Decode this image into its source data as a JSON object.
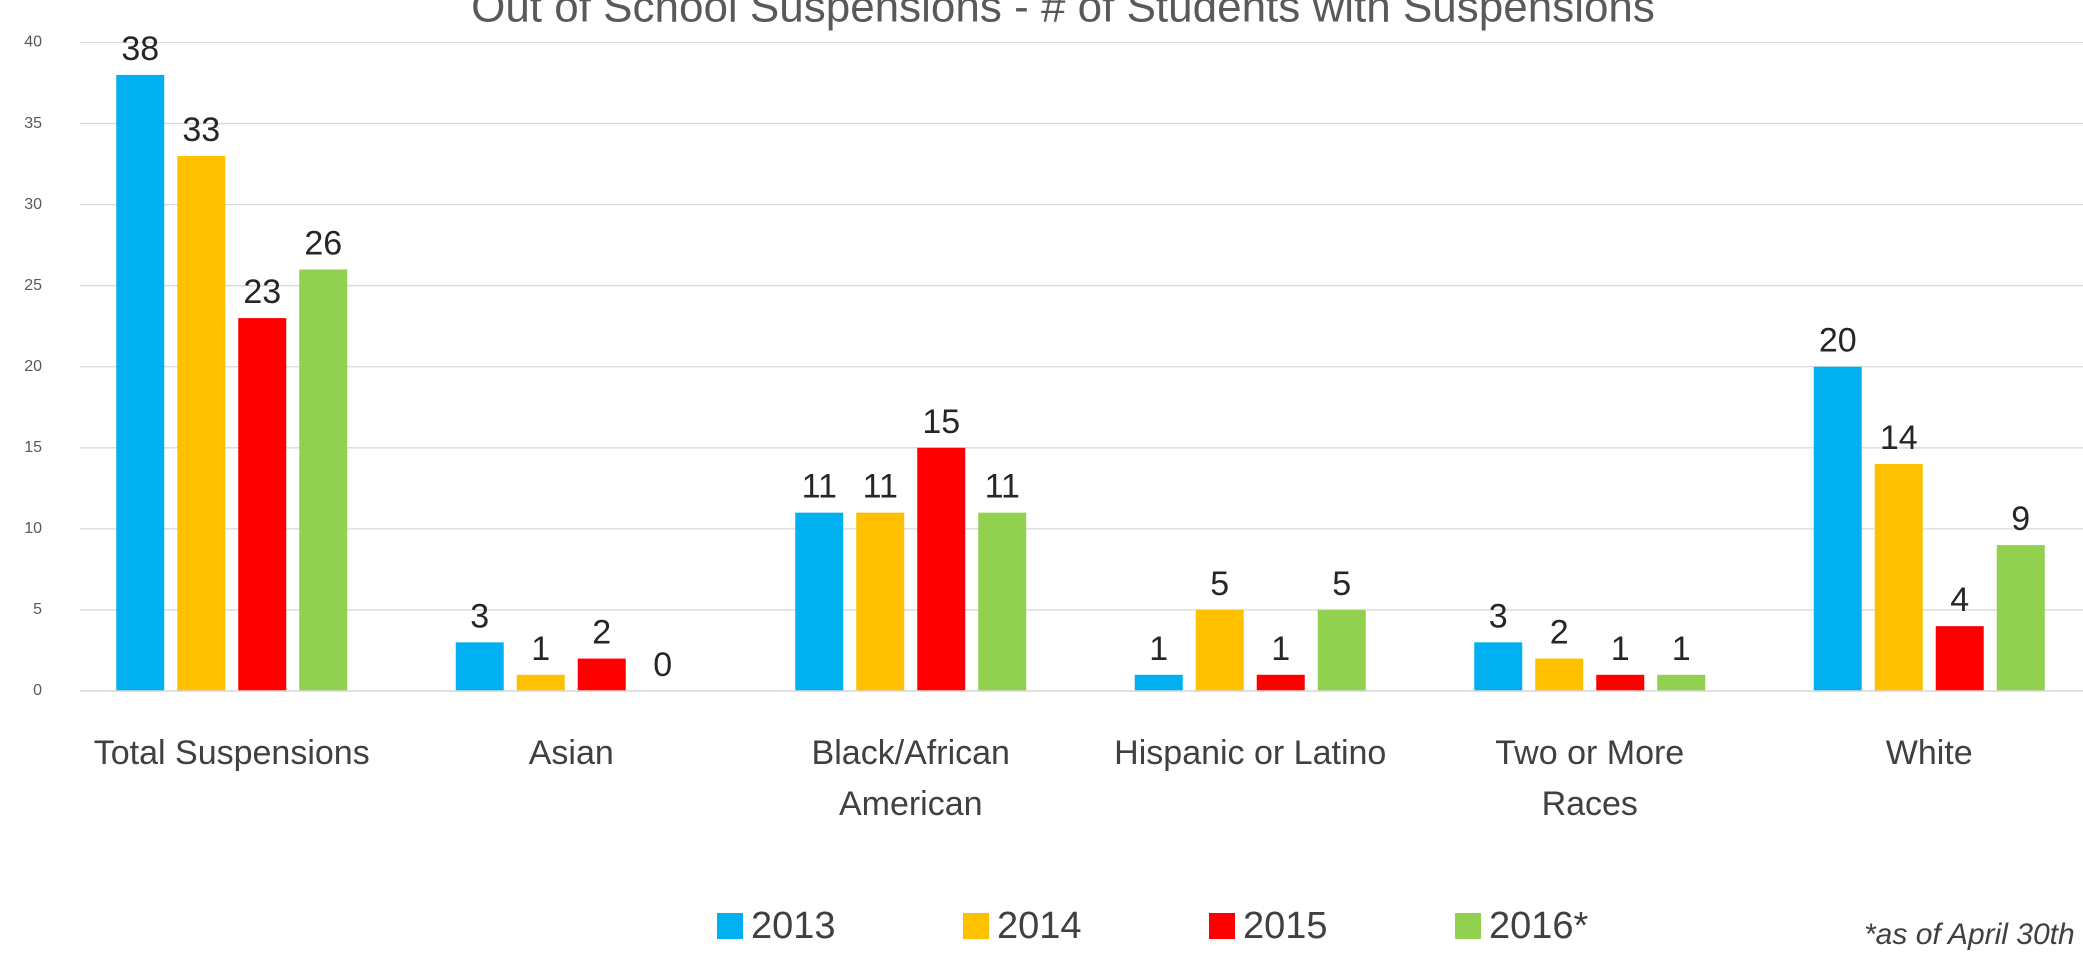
{
  "chart_data": {
    "type": "bar",
    "title": "Out of School Suspensions - # of Students with Suspensions",
    "categories": [
      "Total Suspensions",
      "Asian",
      "Black/African American",
      "Hispanic or Latino",
      "Two or More Races",
      "White"
    ],
    "series": [
      {
        "name": "2013",
        "color": "#00b0f0",
        "values": [
          38,
          3,
          11,
          1,
          3,
          20
        ]
      },
      {
        "name": "2014",
        "color": "#ffc000",
        "values": [
          33,
          1,
          11,
          5,
          2,
          14
        ]
      },
      {
        "name": "2015",
        "color": "#ff0000",
        "values": [
          23,
          2,
          15,
          1,
          1,
          4
        ]
      },
      {
        "name": "2016*",
        "color": "#92d050",
        "values": [
          26,
          0,
          11,
          5,
          1,
          9
        ]
      }
    ],
    "ylim": [
      0,
      40
    ],
    "yticks": [
      0,
      5,
      10,
      15,
      20,
      25,
      30,
      35,
      40
    ],
    "grid": true,
    "legend": "bottom",
    "annotation": "*as of April 30th"
  }
}
